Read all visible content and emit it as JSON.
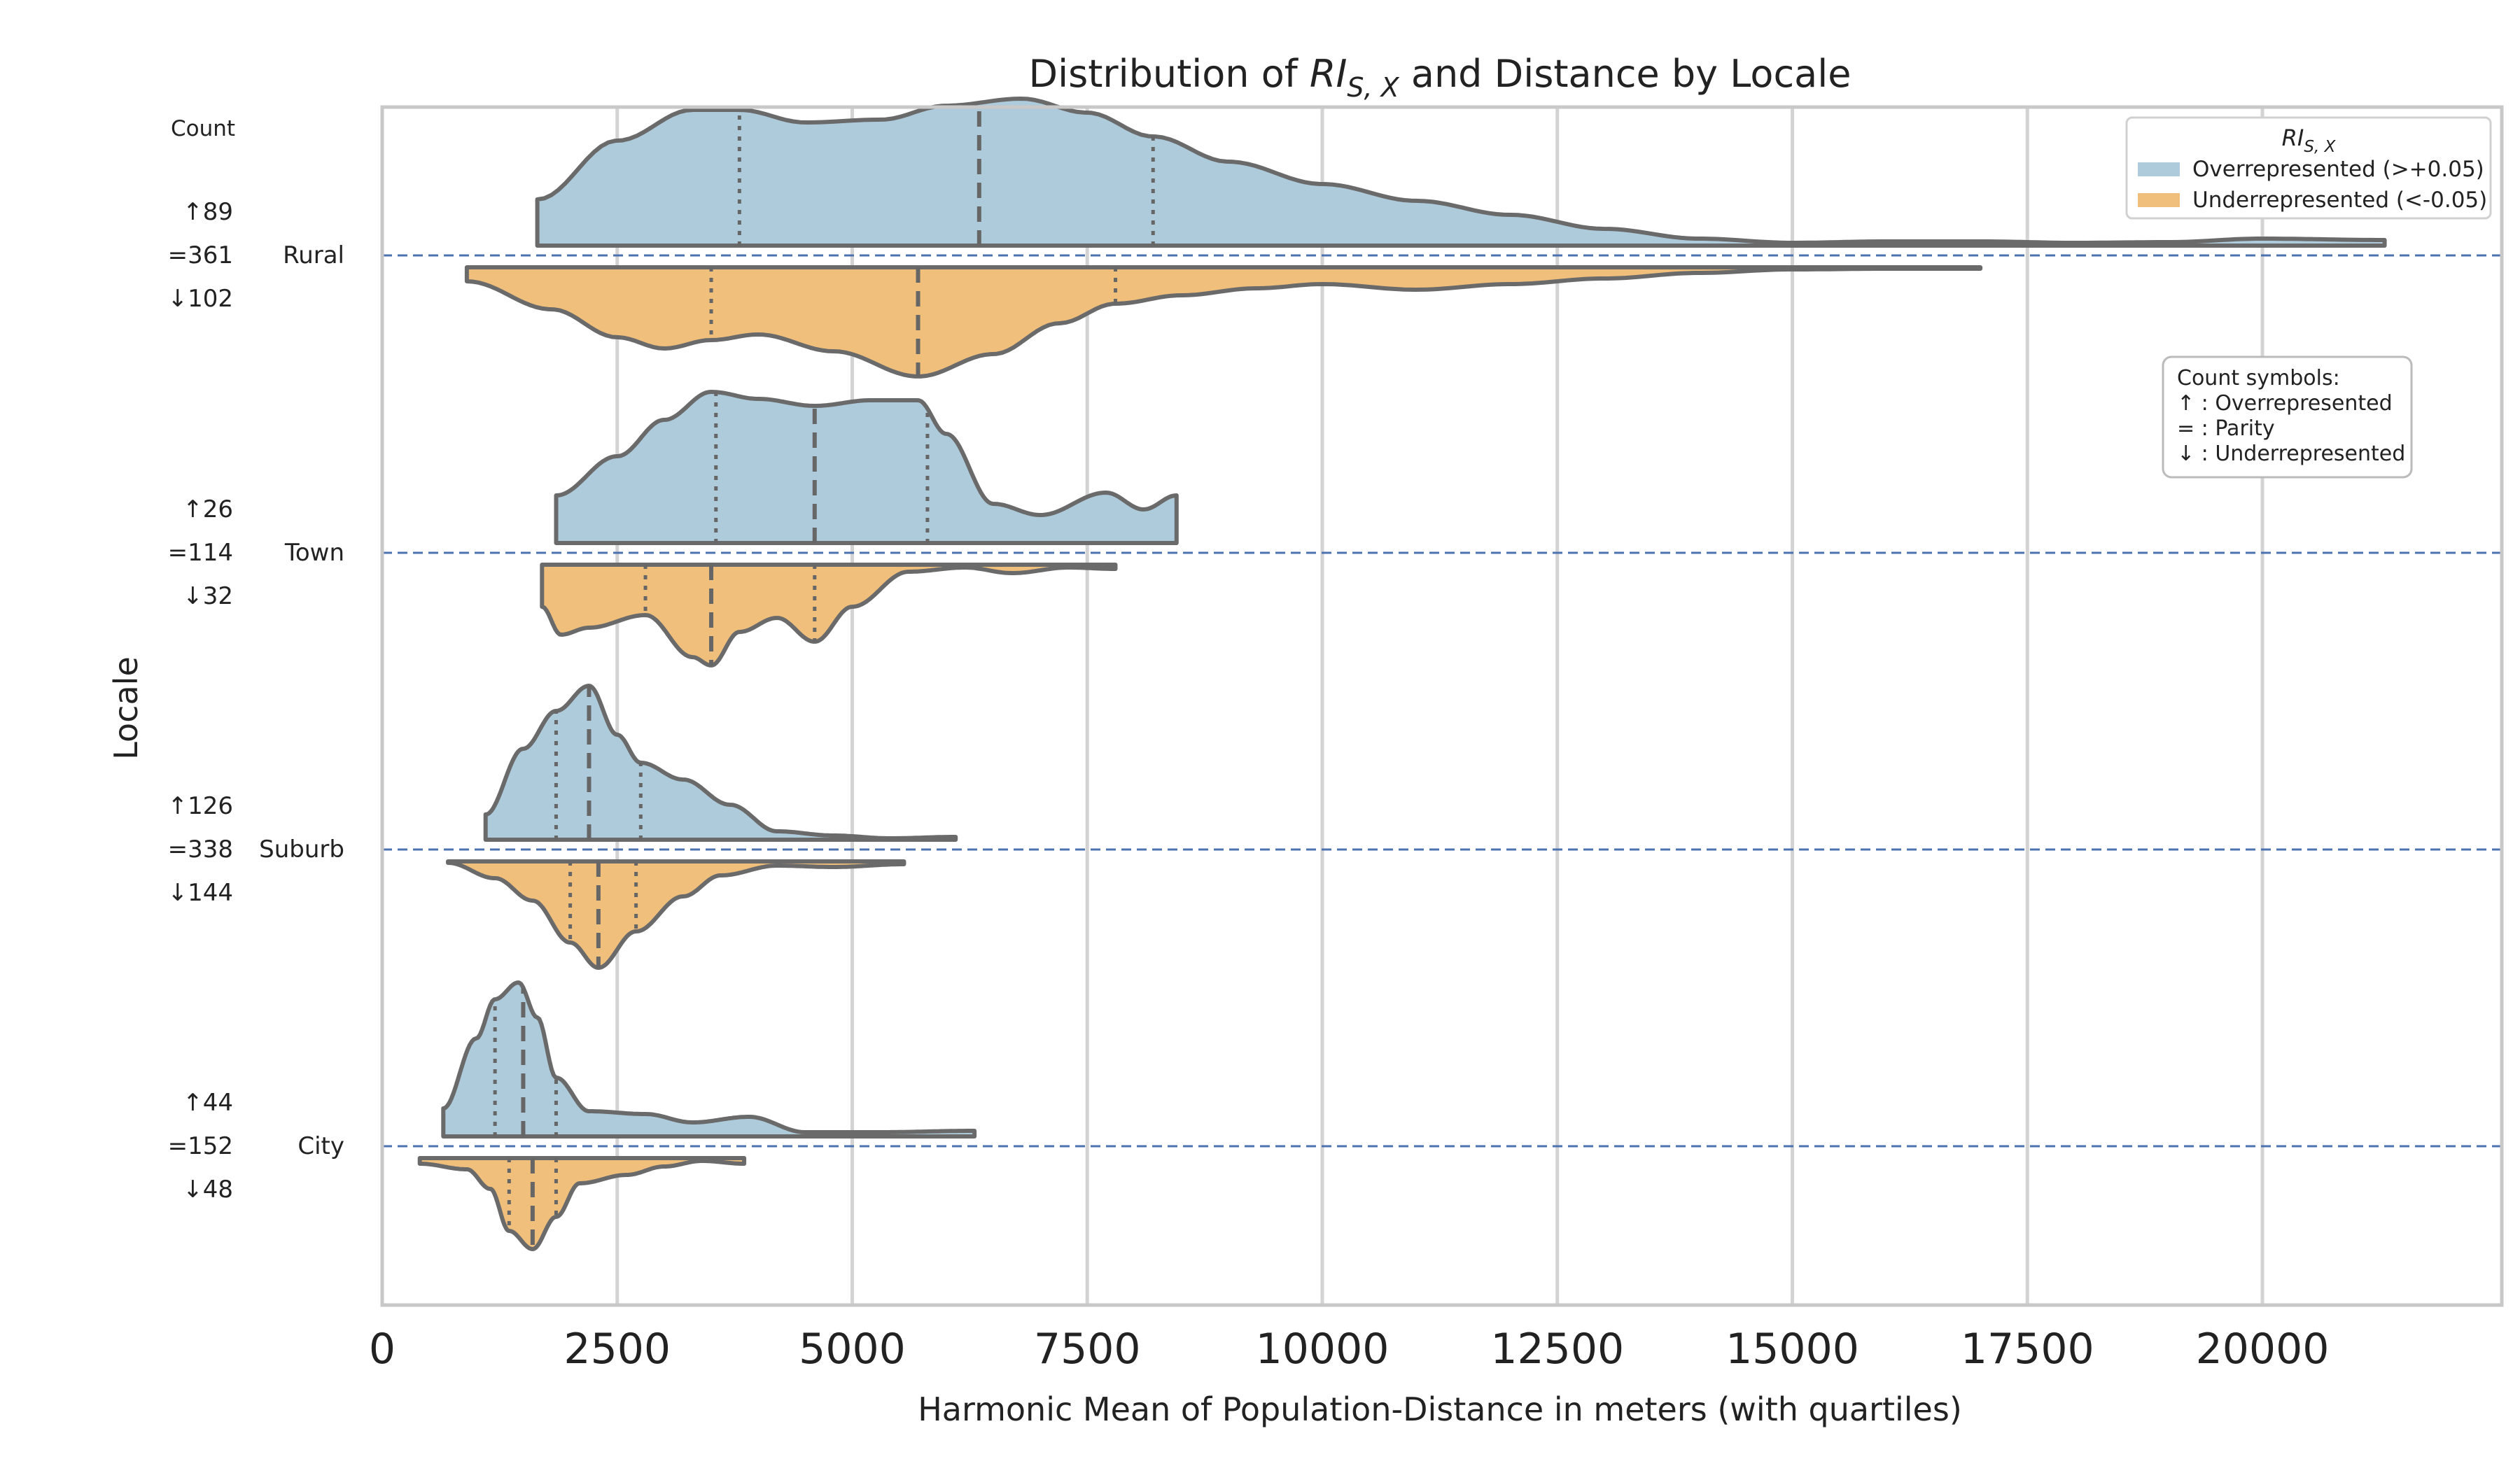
{
  "chart_data": {
    "type": "violin",
    "title_prefix": "Distribution of ",
    "title_math_base": "RI",
    "title_math_sub": "S, X",
    "title_suffix": " and Distance by Locale",
    "xlabel": "Harmonic Mean of Population-Distance in meters (with quartiles)",
    "ylabel": "Locale",
    "xlim": [
      0,
      22300
    ],
    "x_ticks": [
      0,
      2500,
      5000,
      7500,
      10000,
      12500,
      15000,
      17500,
      20000
    ],
    "grid": "vertical",
    "count_header": "Count",
    "legend": {
      "placement": "top-right",
      "title_base": "RI",
      "title_sub": "S, X",
      "entries": [
        {
          "label": "Overrepresented (>+0.05)",
          "color": "#aecbdc"
        },
        {
          "label": "Underrepresented (<-0.05)",
          "color": "#f0bf7c"
        }
      ]
    },
    "symbols_note": {
      "placement": "right",
      "lines": [
        "Count symbols:",
        "↑ : Overrepresented",
        "= : Parity",
        "↓ : Underrepresented"
      ]
    },
    "categories": [
      "Rural",
      "Town",
      "Suburb",
      "City"
    ],
    "counts": [
      {
        "over": "↑89",
        "parity": "=361",
        "under": "↓102"
      },
      {
        "over": "↑26",
        "parity": "=114",
        "under": "↓32"
      },
      {
        "over": "↑126",
        "parity": "=338",
        "under": "↓144"
      },
      {
        "over": "↑44",
        "parity": "=152",
        "under": "↓48"
      }
    ],
    "series": [
      {
        "name": "Overrepresented (>+0.05)",
        "color": "#aecbdc",
        "violins": [
          {
            "min": 1650,
            "max": 21300,
            "q1": 3800,
            "median": 6350,
            "q3": 8200,
            "density": [
              [
                1650,
                0.33
              ],
              [
                2500,
                0.75
              ],
              [
                3300,
                0.97
              ],
              [
                3800,
                0.97
              ],
              [
                4500,
                0.88
              ],
              [
                5300,
                0.9
              ],
              [
                6000,
                1.0
              ],
              [
                6800,
                1.05
              ],
              [
                7500,
                0.95
              ],
              [
                8200,
                0.78
              ],
              [
                9000,
                0.6
              ],
              [
                10000,
                0.44
              ],
              [
                11000,
                0.32
              ],
              [
                12000,
                0.22
              ],
              [
                13000,
                0.12
              ],
              [
                14000,
                0.05
              ],
              [
                15000,
                0.02
              ],
              [
                16000,
                0.03
              ],
              [
                17000,
                0.03
              ],
              [
                18000,
                0.02
              ],
              [
                19000,
                0.025
              ],
              [
                20000,
                0.05
              ],
              [
                21300,
                0.04
              ]
            ]
          },
          {
            "min": 1850,
            "max": 8450,
            "q1": 3550,
            "median": 4600,
            "q3": 5800,
            "density": [
              [
                1850,
                0.34
              ],
              [
                2500,
                0.62
              ],
              [
                3000,
                0.88
              ],
              [
                3500,
                1.08
              ],
              [
                4000,
                1.03
              ],
              [
                4600,
                0.98
              ],
              [
                5200,
                1.02
              ],
              [
                5700,
                1.02
              ],
              [
                6000,
                0.78
              ],
              [
                6500,
                0.28
              ],
              [
                7000,
                0.2
              ],
              [
                7700,
                0.36
              ],
              [
                8100,
                0.24
              ],
              [
                8450,
                0.34
              ]
            ]
          },
          {
            "min": 1100,
            "max": 6100,
            "q1": 1850,
            "median": 2200,
            "q3": 2750,
            "density": [
              [
                1100,
                0.18
              ],
              [
                1500,
                0.65
              ],
              [
                1850,
                0.92
              ],
              [
                2200,
                1.1
              ],
              [
                2500,
                0.75
              ],
              [
                2750,
                0.55
              ],
              [
                3200,
                0.43
              ],
              [
                3700,
                0.25
              ],
              [
                4200,
                0.06
              ],
              [
                4800,
                0.03
              ],
              [
                5400,
                0.01
              ],
              [
                6100,
                0.02
              ]
            ]
          },
          {
            "min": 650,
            "max": 6300,
            "q1": 1200,
            "median": 1500,
            "q3": 1850,
            "density": [
              [
                650,
                0.2
              ],
              [
                1000,
                0.7
              ],
              [
                1200,
                0.98
              ],
              [
                1450,
                1.1
              ],
              [
                1650,
                0.85
              ],
              [
                1850,
                0.42
              ],
              [
                2200,
                0.18
              ],
              [
                2800,
                0.16
              ],
              [
                3300,
                0.1
              ],
              [
                3900,
                0.14
              ],
              [
                4500,
                0.03
              ],
              [
                5300,
                0.03
              ],
              [
                6300,
                0.04
              ]
            ]
          }
        ]
      },
      {
        "name": "Underrepresented (<-0.05)",
        "color": "#f0bf7c",
        "violins": [
          {
            "min": 900,
            "max": 17000,
            "q1": 3500,
            "median": 5700,
            "q3": 7800,
            "density": [
              [
                900,
                0.1
              ],
              [
                1800,
                0.3
              ],
              [
                2500,
                0.5
              ],
              [
                3000,
                0.58
              ],
              [
                3500,
                0.52
              ],
              [
                4000,
                0.48
              ],
              [
                4800,
                0.6
              ],
              [
                5700,
                0.78
              ],
              [
                6500,
                0.62
              ],
              [
                7200,
                0.4
              ],
              [
                7800,
                0.26
              ],
              [
                8500,
                0.2
              ],
              [
                9300,
                0.15
              ],
              [
                10000,
                0.12
              ],
              [
                11000,
                0.16
              ],
              [
                12000,
                0.12
              ],
              [
                13000,
                0.08
              ],
              [
                14000,
                0.04
              ],
              [
                15000,
                0.015
              ],
              [
                16000,
                0.01
              ],
              [
                17000,
                0.01
              ]
            ]
          },
          {
            "min": 1700,
            "max": 7800,
            "q1": 2800,
            "median": 3500,
            "q3": 4600,
            "density": [
              [
                1700,
                0.3
              ],
              [
                1900,
                0.5
              ],
              [
                2200,
                0.45
              ],
              [
                2800,
                0.36
              ],
              [
                3300,
                0.66
              ],
              [
                3500,
                0.72
              ],
              [
                3800,
                0.48
              ],
              [
                4200,
                0.38
              ],
              [
                4600,
                0.55
              ],
              [
                5000,
                0.3
              ],
              [
                5600,
                0.05
              ],
              [
                6200,
                0.02
              ],
              [
                6700,
                0.06
              ],
              [
                7300,
                0.02
              ],
              [
                7800,
                0.03
              ]
            ]
          },
          {
            "min": 700,
            "max": 5550,
            "q1": 2000,
            "median": 2300,
            "q3": 2700,
            "density": [
              [
                700,
                0.01
              ],
              [
                1200,
                0.12
              ],
              [
                1600,
                0.28
              ],
              [
                2000,
                0.58
              ],
              [
                2300,
                0.76
              ],
              [
                2700,
                0.5
              ],
              [
                3200,
                0.25
              ],
              [
                3600,
                0.1
              ],
              [
                4200,
                0.03
              ],
              [
                4800,
                0.04
              ],
              [
                5550,
                0.02
              ]
            ]
          },
          {
            "min": 400,
            "max": 3850,
            "q1": 1350,
            "median": 1600,
            "q3": 1850,
            "density": [
              [
                400,
                0.04
              ],
              [
                900,
                0.08
              ],
              [
                1150,
                0.22
              ],
              [
                1350,
                0.52
              ],
              [
                1600,
                0.65
              ],
              [
                1850,
                0.42
              ],
              [
                2100,
                0.18
              ],
              [
                2600,
                0.12
              ],
              [
                3000,
                0.06
              ],
              [
                3400,
                0.02
              ],
              [
                3850,
                0.04
              ]
            ]
          }
        ]
      }
    ]
  }
}
